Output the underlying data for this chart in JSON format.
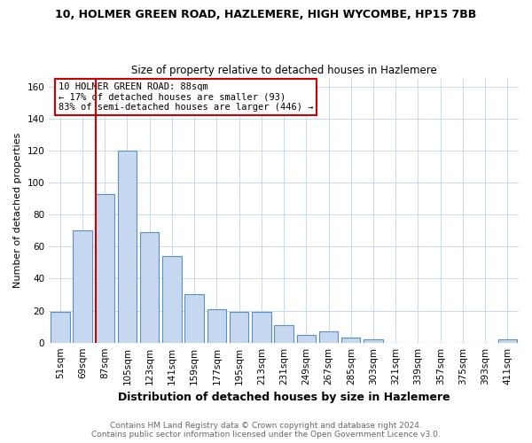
{
  "title1": "10, HOLMER GREEN ROAD, HAZLEMERE, HIGH WYCOMBE, HP15 7BB",
  "title2": "Size of property relative to detached houses in Hazlemere",
  "xlabel": "Distribution of detached houses by size in Hazlemere",
  "ylabel": "Number of detached properties",
  "bar_labels": [
    "51sqm",
    "69sqm",
    "87sqm",
    "105sqm",
    "123sqm",
    "141sqm",
    "159sqm",
    "177sqm",
    "195sqm",
    "213sqm",
    "231sqm",
    "249sqm",
    "267sqm",
    "285sqm",
    "303sqm",
    "321sqm",
    "339sqm",
    "357sqm",
    "375sqm",
    "393sqm",
    "411sqm"
  ],
  "bar_values": [
    19,
    70,
    93,
    120,
    69,
    54,
    30,
    21,
    19,
    19,
    11,
    5,
    7,
    3,
    2,
    0,
    0,
    0,
    0,
    0,
    2
  ],
  "bar_color": "#c5d8ef",
  "bar_edge_color": "#5b8ec4",
  "vline_color": "#cc0000",
  "vline_index": 2,
  "annotation_text": "10 HOLMER GREEN ROAD: 88sqm\n← 17% of detached houses are smaller (93)\n83% of semi-detached houses are larger (446) →",
  "annotation_box_color": "white",
  "annotation_box_edge": "#cc0000",
  "ylim": [
    0,
    165
  ],
  "yticks": [
    0,
    20,
    40,
    60,
    80,
    100,
    120,
    140,
    160
  ],
  "footer1": "Contains HM Land Registry data © Crown copyright and database right 2024.",
  "footer2": "Contains public sector information licensed under the Open Government Licence v3.0.",
  "background_color": "white",
  "grid_color": "#c8d8ea",
  "title1_fontsize": 9,
  "title2_fontsize": 8.5,
  "ylabel_fontsize": 8,
  "xlabel_fontsize": 9,
  "tick_fontsize": 7.5,
  "footer_fontsize": 6.5,
  "footer_color": "#666666"
}
